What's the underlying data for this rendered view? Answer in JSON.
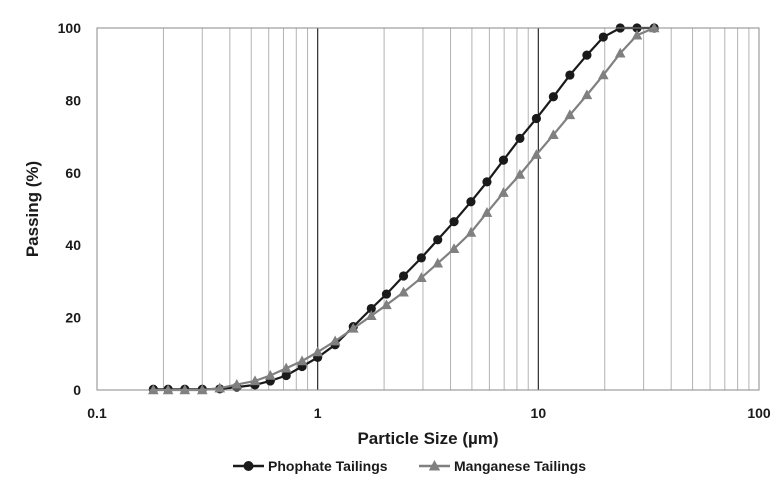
{
  "chart_data": {
    "type": "scatter",
    "xlabel": "Particle Size (µm)",
    "ylabel": "Passing (%)",
    "x_scale": "log",
    "xlim": [
      0.1,
      100
    ],
    "ylim": [
      0,
      100
    ],
    "x_ticks": [
      "0.1",
      "1",
      "10",
      "100"
    ],
    "y_ticks": [
      "0",
      "20",
      "40",
      "60",
      "80",
      "100"
    ],
    "grid": "vertical (major and minor log gridlines)",
    "legend_position": "bottom",
    "series": [
      {
        "name": "Phophate Tailings",
        "marker": "circle",
        "color": "#1a1a1a",
        "x": [
          0.18,
          0.21,
          0.25,
          0.3,
          0.36,
          0.43,
          0.52,
          0.61,
          0.72,
          0.85,
          1.0,
          1.2,
          1.45,
          1.75,
          2.05,
          2.45,
          2.95,
          3.5,
          4.15,
          4.95,
          5.85,
          6.95,
          8.25,
          9.8,
          11.7,
          13.9,
          16.6,
          19.7,
          23.5,
          28.0,
          33.5
        ],
        "y": [
          0.2,
          0.2,
          0.2,
          0.2,
          0.3,
          0.8,
          1.4,
          2.5,
          4.0,
          6.5,
          9.0,
          12.5,
          17.5,
          22.5,
          26.5,
          31.5,
          36.5,
          41.5,
          46.5,
          52.0,
          57.5,
          63.5,
          69.5,
          75.0,
          81.0,
          87.0,
          92.5,
          97.5,
          100.0,
          100.0,
          100.0
        ]
      },
      {
        "name": "Manganese Tailings",
        "marker": "triangle",
        "color": "#808080",
        "x": [
          0.18,
          0.21,
          0.25,
          0.3,
          0.36,
          0.43,
          0.52,
          0.61,
          0.72,
          0.85,
          1.0,
          1.2,
          1.45,
          1.75,
          2.05,
          2.45,
          2.95,
          3.5,
          4.15,
          4.95,
          5.85,
          6.95,
          8.25,
          9.8,
          11.7,
          13.9,
          16.6,
          19.7,
          23.5,
          28.0,
          33.5
        ],
        "y": [
          0.0,
          0.0,
          0.0,
          0.0,
          0.5,
          1.5,
          2.5,
          4.0,
          6.0,
          8.0,
          10.5,
          13.5,
          17.0,
          20.5,
          23.5,
          27.0,
          31.0,
          35.0,
          39.0,
          43.5,
          49.0,
          54.5,
          59.5,
          65.0,
          70.5,
          76.0,
          81.5,
          87.0,
          93.0,
          98.0,
          100.0
        ]
      }
    ]
  }
}
